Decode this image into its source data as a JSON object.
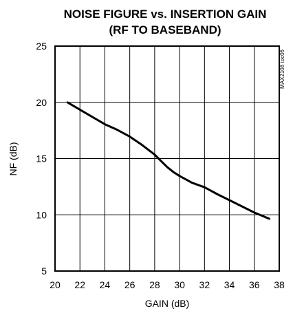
{
  "chart_data": {
    "type": "line",
    "title": "NOISE FIGURE vs. INSERTION GAIN",
    "subtitle": "(RF TO BASEBAND)",
    "xlabel": "GAIN (dB)",
    "ylabel": "NF (dB)",
    "xlim": [
      20,
      38
    ],
    "ylim": [
      5,
      25
    ],
    "xticks": [
      20,
      22,
      24,
      26,
      28,
      30,
      32,
      34,
      36,
      38
    ],
    "yticks": [
      5,
      10,
      15,
      20,
      25
    ],
    "grid": true,
    "annotation": "MAX2108 toc06",
    "series": [
      {
        "x": [
          21,
          22,
          23,
          24,
          25,
          26,
          27,
          28,
          28.5,
          29,
          29.5,
          30,
          31,
          32,
          33,
          34,
          35,
          36,
          37.2
        ],
        "values": [
          20,
          19.35,
          18.7,
          18.05,
          17.55,
          16.95,
          16.2,
          15.35,
          14.8,
          14.25,
          13.8,
          13.45,
          12.85,
          12.45,
          11.85,
          11.3,
          10.75,
          10.2,
          9.65
        ]
      }
    ]
  }
}
